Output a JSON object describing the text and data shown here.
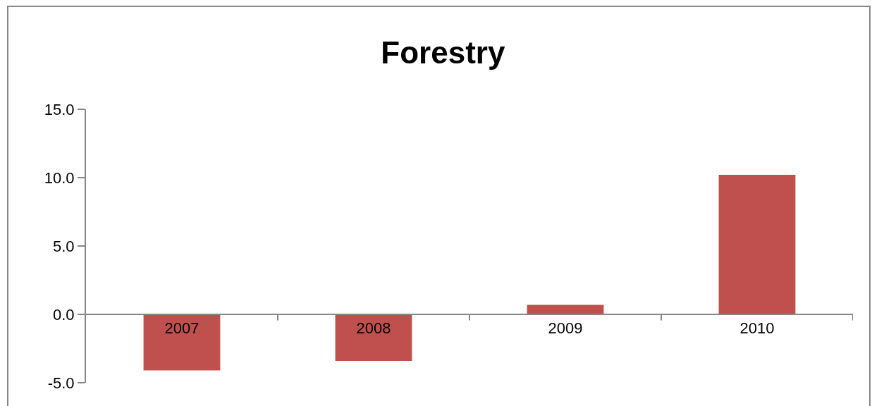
{
  "chart_data": {
    "type": "bar",
    "title": "Forestry",
    "categories": [
      "2007",
      "2008",
      "2009",
      "2010"
    ],
    "values": [
      -4.1,
      -3.4,
      0.7,
      10.2
    ],
    "color": "#c0504d",
    "ylim": [
      -5,
      15
    ],
    "yticks": [
      {
        "value": -5,
        "label": "-5.0"
      },
      {
        "value": 0,
        "label": "0.0"
      },
      {
        "value": 5,
        "label": "5.0"
      },
      {
        "value": 10,
        "label": "10.0"
      },
      {
        "value": 15,
        "label": "15.0"
      }
    ],
    "grid": false,
    "legend": false
  }
}
